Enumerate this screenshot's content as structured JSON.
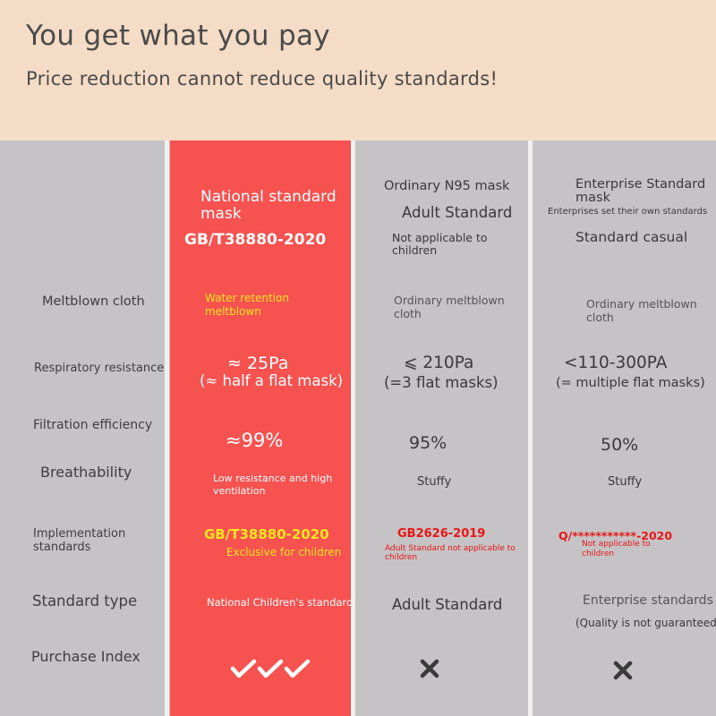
{
  "header": {
    "title": "You get what you pay",
    "subtitle": "Price reduction cannot reduce quality standards!"
  },
  "row_labels": {
    "meltblown": "Meltblown cloth",
    "resistance": "Respiratory resistance",
    "filtration": "Filtration efficiency",
    "breathability": "Breathability",
    "implementation_1": "Implementation",
    "implementation_2": "standards",
    "standard_type": "Standard type",
    "purchase_index": "Purchase Index"
  },
  "national": {
    "name_1": "National standard",
    "name_2": "mask",
    "code": "GB/T38880-2020",
    "meltblown_1": "Water retention",
    "meltblown_2": "meltblown",
    "resistance": "≈ 25Pa",
    "resistance_note": "(≈ half a flat mask)",
    "filtration": "≈99%",
    "breathability_1": "Low resistance and high",
    "breathability_2": "ventilation",
    "impl_code": "GB/T38880-2020",
    "impl_note": "Exclusive for children",
    "standard_type": "National Children's standard",
    "purchase_icon": "triple-check-icon"
  },
  "n95": {
    "name": "Ordinary N95 mask",
    "standard": "Adult Standard",
    "note_1": "Not applicable to",
    "note_2": "children",
    "meltblown_1": "Ordinary meltblown",
    "meltblown_2": "cloth",
    "resistance": "⩽ 210Pa",
    "resistance_note": "(=3 flat masks)",
    "filtration": "95%",
    "breathability": "Stuffy",
    "impl_code": "GB2626-2019",
    "impl_note_1": "Adult Standard not applicable to",
    "impl_note_2": "children",
    "standard_type": "Adult Standard",
    "purchase_icon": "cross-icon"
  },
  "enterprise": {
    "name_1": "Enterprise Standard",
    "name_2": "mask",
    "note": "Enterprises set their own standards",
    "standard": "Standard casual",
    "meltblown_1": "Ordinary meltblown",
    "meltblown_2": "cloth",
    "resistance": "<110-300PA",
    "resistance_note": "(= multiple flat masks)",
    "filtration": "50%",
    "breathability": "Stuffy",
    "impl_code": "Q/***********-2020",
    "impl_note_1": "Not applicable to",
    "impl_note_2": "children",
    "standard_type": "Enterprise standards",
    "standard_type_note": "(Quality is not guaranteed)",
    "purchase_icon": "cross-icon"
  },
  "colors": {
    "header_bg": "#f5dcc6",
    "highlight": "#f55250",
    "gray_bg": "#c5c3c5"
  }
}
